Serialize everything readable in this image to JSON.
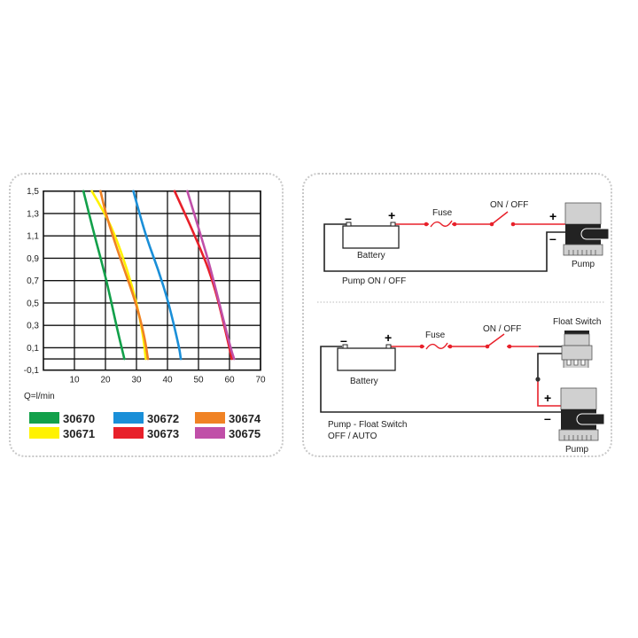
{
  "chart_data": {
    "type": "line",
    "title": "",
    "xlabel": "Q=l/min",
    "ylabel": "",
    "xlim": [
      0,
      70
    ],
    "ylim": [
      -0.1,
      1.5
    ],
    "x_ticks": [
      "10",
      "20",
      "30",
      "40",
      "50",
      "60",
      "70"
    ],
    "y_ticks": [
      "1,5",
      "1,3",
      "1,1",
      "0,9",
      "0,7",
      "0,5",
      "0,3",
      "0,1",
      "-0,1"
    ],
    "grid": true,
    "legend_position": "bottom",
    "series": [
      {
        "name": "30670",
        "color": "#12a04a",
        "points": [
          [
            12.9,
            1.5
          ],
          [
            16.5,
            1.1
          ],
          [
            20.4,
            0.7
          ],
          [
            23.5,
            0.3
          ],
          [
            26.1,
            0
          ]
        ]
      },
      {
        "name": "30671",
        "color": "#fff200",
        "points": [
          [
            15.6,
            1.5
          ],
          [
            19.8,
            1.3
          ],
          [
            23.2,
            1.1
          ],
          [
            27,
            0.8
          ],
          [
            30.1,
            0.5
          ],
          [
            32.2,
            0.2
          ],
          [
            33,
            0
          ]
        ]
      },
      {
        "name": "30672",
        "color": "#1a8fd8",
        "points": [
          [
            29,
            1.5
          ],
          [
            33,
            1.1
          ],
          [
            37,
            0.8
          ],
          [
            40.4,
            0.5
          ],
          [
            43.8,
            0.1
          ],
          [
            44.3,
            0
          ]
        ]
      },
      {
        "name": "30673",
        "color": "#e8202a",
        "points": [
          [
            42.3,
            1.5
          ],
          [
            48.9,
            1.1
          ],
          [
            54.8,
            0.7
          ],
          [
            60,
            0.1
          ],
          [
            60.7,
            0
          ]
        ]
      },
      {
        "name": "30674",
        "color": "#f08224",
        "points": [
          [
            18.4,
            1.5
          ],
          [
            20.1,
            1.3
          ],
          [
            23.5,
            1.0
          ],
          [
            29.9,
            0.5
          ],
          [
            32.6,
            0.2
          ],
          [
            33.7,
            0
          ]
        ]
      },
      {
        "name": "30675",
        "color": "#c04fa8",
        "points": [
          [
            46.4,
            1.5
          ],
          [
            50.8,
            1.1
          ],
          [
            54,
            0.8
          ],
          [
            60.3,
            0.1
          ],
          [
            61.5,
            0
          ]
        ]
      }
    ]
  },
  "diagram": {
    "top": {
      "battery": "Battery",
      "plus": "+",
      "minus": "–",
      "fuse": "Fuse",
      "switch": "ON / OFF",
      "pump_plus": "+",
      "pump_minus": "–",
      "pump": "Pump",
      "caption": "Pump ON / OFF"
    },
    "bottom": {
      "battery": "Battery",
      "plus": "+",
      "minus": "–",
      "fuse": "Fuse",
      "switch": "ON / OFF",
      "float_switch": "Float Switch",
      "pump_plus": "+",
      "pump_minus": "–",
      "pump": "Pump",
      "caption_line1": "Pump - Float Switch",
      "caption_line2": "OFF / AUTO"
    },
    "colors": {
      "positive_wire": "#e8202a",
      "negative_wire": "#222222"
    }
  }
}
